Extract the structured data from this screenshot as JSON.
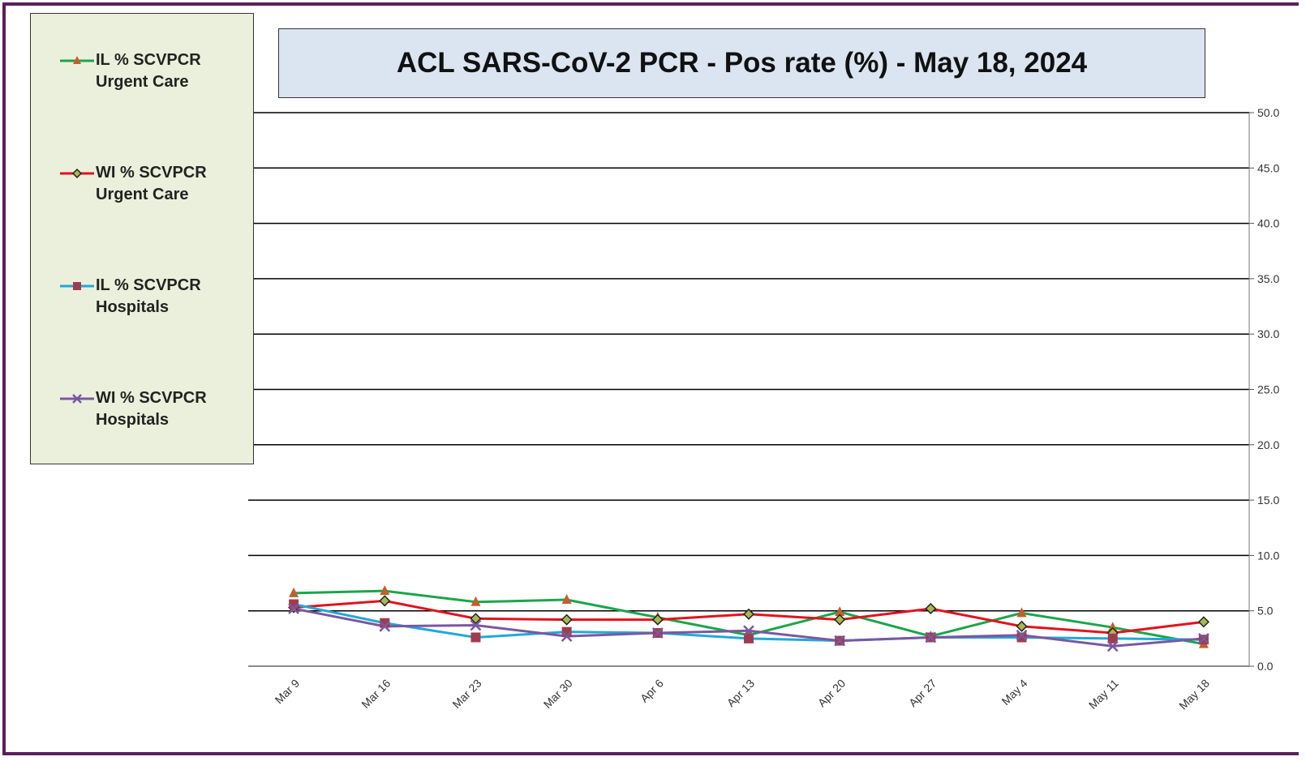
{
  "chart_data": {
    "type": "line",
    "title": "ACL SARS-CoV-2 PCR -  Pos rate (%) - May 18, 2024",
    "categories": [
      "Mar 9",
      "Mar 16",
      "Mar 23",
      "Mar 30",
      "Apr 6",
      "Apr 13",
      "Apr 20",
      "Apr 27",
      "May 4",
      "May 11",
      "May 18"
    ],
    "series": [
      {
        "name": "IL % SCVPCR Urgent Care",
        "color": "#1aa64a",
        "marker": "triangle",
        "marker_color": "#c0602a",
        "values": [
          6.6,
          6.8,
          5.8,
          6.0,
          4.4,
          2.8,
          4.9,
          2.7,
          4.8,
          3.5,
          2.0
        ]
      },
      {
        "name": "WI % SCVPCR Urgent Care",
        "color": "#e0141e",
        "marker": "diamond",
        "marker_color": "#a8b850",
        "values": [
          5.3,
          5.9,
          4.3,
          4.2,
          4.2,
          4.7,
          4.2,
          5.2,
          3.6,
          3.0,
          4.0
        ]
      },
      {
        "name": "IL % SCVPCR Hospitals",
        "color": "#22a8d8",
        "marker": "square",
        "marker_color": "#a03c50",
        "values": [
          5.6,
          3.9,
          2.6,
          3.1,
          3.0,
          2.5,
          2.3,
          2.6,
          2.6,
          2.5,
          2.4
        ]
      },
      {
        "name": "WI % SCVPCR Hospitals",
        "color": "#7a58a0",
        "marker": "x",
        "marker_color": "#7a58a0",
        "values": [
          5.2,
          3.6,
          3.7,
          2.7,
          3.0,
          3.2,
          2.3,
          2.6,
          2.8,
          1.8,
          2.5
        ]
      }
    ],
    "ylim": [
      0,
      50
    ],
    "yticks": [
      {
        "value": 0,
        "label": "0.0"
      },
      {
        "value": 5,
        "label": "5.0"
      },
      {
        "value": 10,
        "label": "10.0"
      },
      {
        "value": 15,
        "label": "15.0"
      },
      {
        "value": 20,
        "label": "20.0"
      },
      {
        "value": 25,
        "label": "25.0"
      },
      {
        "value": 30,
        "label": "30.0"
      },
      {
        "value": 35,
        "label": "35.0"
      },
      {
        "value": 40,
        "label": "40.0"
      },
      {
        "value": 45,
        "label": "45.0"
      },
      {
        "value": 50,
        "label": "50.0"
      }
    ],
    "grid": true,
    "legend_position": "left"
  }
}
